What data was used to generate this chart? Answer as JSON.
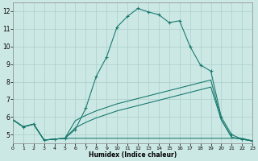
{
  "xlabel": "Humidex (Indice chaleur)",
  "bg_color": "#cce8e5",
  "grid_color": "#aacfcc",
  "line_color": "#1a7a6e",
  "xlim": [
    0,
    23
  ],
  "ylim": [
    4.5,
    12.5
  ],
  "xticks": [
    0,
    1,
    2,
    3,
    4,
    5,
    6,
    7,
    8,
    9,
    10,
    11,
    12,
    13,
    14,
    15,
    16,
    17,
    18,
    19,
    20,
    21,
    22,
    23
  ],
  "yticks": [
    5,
    6,
    7,
    8,
    9,
    10,
    11,
    12
  ],
  "line1_x": [
    0,
    1,
    2,
    3,
    4,
    5,
    6,
    7,
    8,
    9,
    10,
    11,
    12,
    13,
    14,
    15,
    16,
    17,
    18,
    19,
    20,
    21,
    22,
    23
  ],
  "line1_y": [
    5.85,
    5.45,
    5.6,
    4.7,
    4.75,
    4.8,
    5.3,
    6.5,
    8.3,
    9.4,
    11.1,
    11.7,
    12.15,
    11.95,
    11.8,
    11.35,
    11.45,
    10.0,
    8.95,
    8.6,
    6.0,
    5.0,
    4.75,
    4.65
  ],
  "line2_x": [
    0,
    1,
    2,
    3,
    4,
    5,
    6,
    7,
    8,
    9,
    10,
    11,
    12,
    13,
    14,
    15,
    16,
    17,
    18,
    19,
    20,
    21,
    22,
    23
  ],
  "line2_y": [
    5.85,
    5.45,
    5.6,
    4.7,
    4.75,
    4.8,
    5.8,
    6.1,
    6.35,
    6.55,
    6.75,
    6.9,
    7.05,
    7.2,
    7.35,
    7.5,
    7.65,
    7.8,
    7.95,
    8.1,
    5.85,
    4.85,
    4.75,
    4.65
  ],
  "line3_x": [
    0,
    1,
    2,
    3,
    4,
    5,
    6,
    7,
    8,
    9,
    10,
    11,
    12,
    13,
    14,
    15,
    16,
    17,
    18,
    19,
    20,
    21,
    22,
    23
  ],
  "line3_y": [
    5.85,
    5.45,
    5.6,
    4.7,
    4.75,
    4.8,
    5.4,
    5.7,
    5.95,
    6.15,
    6.35,
    6.5,
    6.65,
    6.8,
    6.95,
    7.1,
    7.25,
    7.4,
    7.55,
    7.7,
    5.85,
    4.85,
    4.75,
    4.65
  ],
  "line4_x": [
    0,
    1,
    2,
    3,
    4,
    5,
    6,
    7,
    8,
    9,
    10,
    11,
    12,
    13,
    14,
    15,
    16,
    17,
    18,
    19,
    20,
    21,
    22,
    23
  ],
  "line4_y": [
    5.85,
    5.45,
    5.6,
    4.7,
    4.75,
    4.8,
    4.8,
    4.8,
    4.8,
    4.8,
    4.8,
    4.8,
    4.8,
    4.8,
    4.8,
    4.8,
    4.8,
    4.8,
    4.8,
    4.8,
    4.8,
    4.8,
    4.8,
    4.65
  ]
}
